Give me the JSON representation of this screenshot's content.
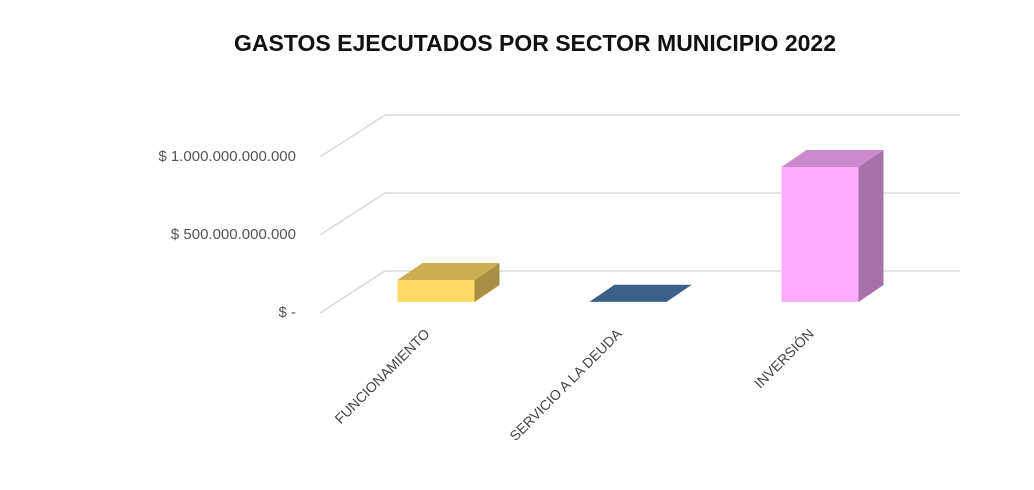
{
  "chart_data": {
    "type": "bar3d",
    "title": "GASTOS EJECUTADOS POR SECTOR  MUNICIPIO 2022",
    "categories": [
      "FUNCIONAMIENTO",
      "SERVICIO A LA DEUDA",
      "INVERSIÓN"
    ],
    "values": [
      141000000000,
      2000000000,
      865000000000
    ],
    "colors": [
      "#ffd966",
      "#4a78ab",
      "#ffaaff"
    ],
    "ylim": [
      0,
      1000000000000
    ],
    "yticks": [
      {
        "value": 0,
        "label": "$ -"
      },
      {
        "value": 500000000000,
        "label": "$ 500.000.000.000"
      },
      {
        "value": 1000000000000,
        "label": "$ 1.000.000.000.000"
      }
    ],
    "grid": true
  }
}
